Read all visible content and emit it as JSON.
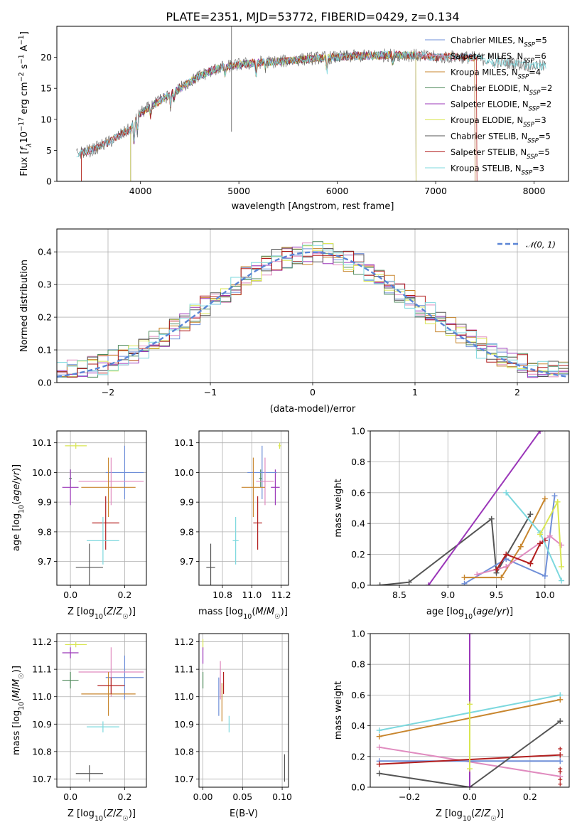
{
  "title": "PLATE=2351, MJD=53772, FIBERID=0429, z=0.134",
  "colors": {
    "Chabrier MILES": "#6f8fd8",
    "Salpeter MILES": "#e08bbf",
    "Kroupa MILES": "#c8862e",
    "Chabrier ELODIE": "#4f8a5c",
    "Salpeter ELODIE": "#9b37b9",
    "Kroupa ELODIE": "#d9e651",
    "Chabrier STELIB": "#555555",
    "Salpeter STELIB": "#b21e1e",
    "Kroupa STELIB": "#7cd8de",
    "normal": "#5a85d6",
    "orange": "#e07a28"
  },
  "chart_data": [
    {
      "id": "spectrum",
      "type": "line",
      "title": "PLATE=2351, MJD=53772, FIBERID=0429, z=0.134",
      "xlabel": "wavelength [Angstrom, rest frame]",
      "ylabel": "Flux [f_λ10^-17 erg cm^-2 s^-1 A^-1]",
      "xlim": [
        3150,
        8350
      ],
      "ylim": [
        0,
        25
      ],
      "xticks": [
        "4000",
        "5000",
        "6000",
        "7000",
        "8000"
      ],
      "yticks": [
        "0",
        "5",
        "10",
        "15",
        "20"
      ],
      "legend": [
        {
          "label": "Chabrier MILES, N",
          "sub": "SSP",
          "suffix": "=5"
        },
        {
          "label": "Salpeter MILES, N",
          "sub": "SSP",
          "suffix": "=6"
        },
        {
          "label": "Kroupa MILES, N",
          "sub": "SSP",
          "suffix": "=4"
        },
        {
          "label": "Chabrier ELODIE, N",
          "sub": "SSP",
          "suffix": "=2"
        },
        {
          "label": "Salpeter ELODIE, N",
          "sub": "SSP",
          "suffix": "=2"
        },
        {
          "label": "Kroupa ELODIE, N",
          "sub": "SSP",
          "suffix": "=3"
        },
        {
          "label": "Chabrier STELIB, N",
          "sub": "SSP",
          "suffix": "=5"
        },
        {
          "label": "Salpeter STELIB, N",
          "sub": "SSP",
          "suffix": "=5"
        },
        {
          "label": "Kroupa STELIB, N",
          "sub": "SSP",
          "suffix": "=3"
        }
      ],
      "continuum": {
        "wavelength": [
          3350,
          3500,
          3700,
          3900,
          4000,
          4200,
          4400,
          4600,
          4800,
          5000,
          5200,
          5400,
          5600,
          5800,
          6000,
          6200,
          6400,
          6600,
          6800,
          7000,
          7200,
          7400,
          7600,
          7800,
          8000,
          8120
        ],
        "flux": [
          4.5,
          5.0,
          6.5,
          8.5,
          11.0,
          13.0,
          15.0,
          17.0,
          18.3,
          18.8,
          19.2,
          19.3,
          19.6,
          19.9,
          20.0,
          20.2,
          20.3,
          20.4,
          20.3,
          20.0,
          20.1,
          19.9,
          19.4,
          19.0,
          18.7,
          18.5
        ]
      }
    },
    {
      "id": "residuals",
      "type": "line",
      "xlabel": "(data-model)/error",
      "ylabel": "Normed distribution",
      "xlim": [
        -2.5,
        2.5
      ],
      "ylim": [
        0,
        0.47
      ],
      "xticks": [
        "−2",
        "−1",
        "0",
        "1",
        "2"
      ],
      "yticks": [
        "0.0",
        "0.1",
        "0.2",
        "0.3",
        "0.4"
      ],
      "legend": [
        "𝒩(0, 1)"
      ],
      "normal_pdf": {
        "mean": 0,
        "sigma": 1
      }
    },
    {
      "id": "age-vs-Z",
      "type": "scatter",
      "xlabel": "Z [log10(Z/Z☉)]",
      "ylabel": "age  [log10(age/yr)]",
      "xlim": [
        -0.05,
        0.28
      ],
      "ylim": [
        9.62,
        10.14
      ],
      "xticks": [
        "0.0",
        "0.2"
      ],
      "yticks": [
        "9.7",
        "9.8",
        "9.9",
        "10.0",
        "10.1"
      ],
      "points": [
        {
          "model": "Kroupa ELODIE",
          "x": 0.02,
          "xerr": 0.04,
          "y": 10.09,
          "yerr": 0.01
        },
        {
          "model": "Chabrier ELODIE",
          "x": 0.0,
          "xerr": 0.005,
          "y": 9.98,
          "yerr": 0.03
        },
        {
          "model": "Salpeter ELODIE",
          "x": 0.0,
          "xerr": 0.03,
          "y": 9.95,
          "yerr": 0.06
        },
        {
          "model": "Chabrier MILES",
          "x": 0.2,
          "xerr": 0.07,
          "y": 10.0,
          "yerr": 0.09
        },
        {
          "model": "Salpeter MILES",
          "x": 0.15,
          "xerr": 0.12,
          "y": 9.97,
          "yerr": 0.08
        },
        {
          "model": "Kroupa MILES",
          "x": 0.14,
          "xerr": 0.1,
          "y": 9.95,
          "yerr": 0.1
        },
        {
          "model": "Salpeter STELIB",
          "x": 0.13,
          "xerr": 0.05,
          "y": 9.83,
          "yerr": 0.09
        },
        {
          "model": "Kroupa STELIB",
          "x": 0.12,
          "xerr": 0.06,
          "y": 9.77,
          "yerr": 0.08
        },
        {
          "model": "Chabrier STELIB",
          "x": 0.07,
          "xerr": 0.05,
          "y": 9.68,
          "yerr": 0.08
        }
      ]
    },
    {
      "id": "age-vs-mass",
      "type": "scatter",
      "xlabel": "mass [log10(M/M☉)]",
      "ylabel": "",
      "xlim": [
        10.64,
        11.25
      ],
      "ylim": [
        9.62,
        10.14
      ],
      "xticks": [
        "10.8",
        "11.0",
        "11.2"
      ],
      "yticks": [
        "9.7",
        "9.8",
        "9.9",
        "10.0",
        "10.1"
      ],
      "points": [
        {
          "model": "Kroupa ELODIE",
          "x": 11.19,
          "xerr": 0.01,
          "y": 10.09,
          "yerr": 0.01
        },
        {
          "model": "Chabrier ELODIE",
          "x": 11.06,
          "xerr": 0.01,
          "y": 9.98,
          "yerr": 0.03
        },
        {
          "model": "Salpeter ELODIE",
          "x": 11.16,
          "xerr": 0.03,
          "y": 9.95,
          "yerr": 0.06
        },
        {
          "model": "Chabrier MILES",
          "x": 11.07,
          "xerr": 0.1,
          "y": 10.0,
          "yerr": 0.09
        },
        {
          "model": "Salpeter MILES",
          "x": 11.09,
          "xerr": 0.06,
          "y": 9.97,
          "yerr": 0.08
        },
        {
          "model": "Kroupa MILES",
          "x": 11.01,
          "xerr": 0.08,
          "y": 9.95,
          "yerr": 0.1
        },
        {
          "model": "Salpeter STELIB",
          "x": 11.04,
          "xerr": 0.03,
          "y": 9.83,
          "yerr": 0.09
        },
        {
          "model": "Kroupa STELIB",
          "x": 10.89,
          "xerr": 0.02,
          "y": 9.77,
          "yerr": 0.08
        },
        {
          "model": "Chabrier STELIB",
          "x": 10.72,
          "xerr": 0.03,
          "y": 9.68,
          "yerr": 0.08
        }
      ]
    },
    {
      "id": "weight-vs-age",
      "type": "line",
      "xlabel": "age  [log10(age/yr)]",
      "ylabel": "mass weight",
      "xlim": [
        8.2,
        10.25
      ],
      "ylim": [
        0,
        1.0
      ],
      "xticks": [
        "8.5",
        "9.0",
        "9.5",
        "10.0"
      ],
      "yticks": [
        "0.0",
        "0.2",
        "0.4",
        "0.6",
        "0.8",
        "1.0"
      ],
      "series": [
        {
          "model": "Chabrier STELIB",
          "x": [
            8.3,
            8.6,
            9.45,
            9.5,
            9.85
          ],
          "y": [
            0.0,
            0.02,
            0.43,
            0.08,
            0.46
          ]
        },
        {
          "model": "Salpeter ELODIE",
          "x": [
            8.8,
            9.95
          ],
          "y": [
            0.0,
            1.0
          ]
        },
        {
          "model": "Chabrier MILES",
          "x": [
            9.17,
            9.6,
            10.0,
            10.1
          ],
          "y": [
            0.01,
            0.17,
            0.06,
            0.58
          ]
        },
        {
          "model": "Kroupa MILES",
          "x": [
            9.17,
            9.55,
            9.75,
            10.0
          ],
          "y": [
            0.05,
            0.05,
            0.25,
            0.56
          ]
        },
        {
          "model": "Salpeter MILES",
          "x": [
            9.3,
            9.6,
            10.05,
            10.17
          ],
          "y": [
            0.07,
            0.12,
            0.32,
            0.26
          ]
        },
        {
          "model": "Salpeter STELIB",
          "x": [
            9.5,
            9.6,
            9.85,
            9.95,
            10.0
          ],
          "y": [
            0.1,
            0.2,
            0.14,
            0.27,
            0.29
          ]
        },
        {
          "model": "Kroupa STELIB",
          "x": [
            9.6,
            9.95,
            10.17
          ],
          "y": [
            0.6,
            0.34,
            0.03
          ]
        },
        {
          "model": "Kroupa ELODIE",
          "x": [
            9.95,
            10.13,
            10.17
          ],
          "y": [
            0.33,
            0.54,
            0.12
          ]
        }
      ]
    },
    {
      "id": "mass-vs-Z",
      "type": "scatter",
      "xlabel": "Z [log10(Z/Z☉)]",
      "ylabel": "mass [log10(M/M☉)]",
      "xlim": [
        -0.05,
        0.28
      ],
      "ylim": [
        10.67,
        11.23
      ],
      "xticks": [
        "0.0",
        "0.2"
      ],
      "yticks": [
        "10.7",
        "10.8",
        "10.9",
        "11.0",
        "11.1",
        "11.2"
      ],
      "points": [
        {
          "model": "Kroupa ELODIE",
          "x": 0.02,
          "xerr": 0.04,
          "y": 11.19,
          "yerr": 0.01
        },
        {
          "model": "Salpeter ELODIE",
          "x": 0.0,
          "xerr": 0.03,
          "y": 11.16,
          "yerr": 0.02
        },
        {
          "model": "Chabrier ELODIE",
          "x": 0.0,
          "xerr": 0.03,
          "y": 11.06,
          "yerr": 0.03
        },
        {
          "model": "Chabrier MILES",
          "x": 0.2,
          "xerr": 0.07,
          "y": 11.07,
          "yerr": 0.08
        },
        {
          "model": "Salpeter MILES",
          "x": 0.15,
          "xerr": 0.12,
          "y": 11.09,
          "yerr": 0.09
        },
        {
          "model": "Kroupa MILES",
          "x": 0.14,
          "xerr": 0.1,
          "y": 11.01,
          "yerr": 0.08
        },
        {
          "model": "Salpeter STELIB",
          "x": 0.15,
          "xerr": 0.05,
          "y": 11.04,
          "yerr": 0.03
        },
        {
          "model": "Kroupa STELIB",
          "x": 0.12,
          "xerr": 0.06,
          "y": 10.89,
          "yerr": 0.02
        },
        {
          "model": "Chabrier STELIB",
          "x": 0.07,
          "xerr": 0.05,
          "y": 10.72,
          "yerr": 0.03
        }
      ]
    },
    {
      "id": "mass-vs-EBV",
      "type": "scatter",
      "xlabel": "E(B-V)",
      "ylabel": "",
      "xlim": [
        -0.005,
        0.108
      ],
      "ylim": [
        10.67,
        11.23
      ],
      "xticks": [
        "0.00",
        "0.05",
        "0.10"
      ],
      "yticks": [
        "10.7",
        "10.8",
        "10.9",
        "11.0",
        "11.1",
        "11.2"
      ],
      "points": [
        {
          "model": "Kroupa ELODIE",
          "x": 0.0,
          "y": 11.19,
          "yerr": 0.02
        },
        {
          "model": "Salpeter ELODIE",
          "x": 0.0,
          "y": 11.15,
          "yerr": 0.03
        },
        {
          "model": "Chabrier ELODIE",
          "x": 0.0,
          "y": 11.06,
          "yerr": 0.03
        },
        {
          "model": "Chabrier MILES",
          "x": 0.02,
          "y": 11.0,
          "yerr": 0.07
        },
        {
          "model": "Salpeter MILES",
          "x": 0.022,
          "y": 11.06,
          "yerr": 0.07
        },
        {
          "model": "Kroupa MILES",
          "x": 0.024,
          "y": 10.98,
          "yerr": 0.07
        },
        {
          "model": "Salpeter STELIB",
          "x": 0.026,
          "y": 11.05,
          "yerr": 0.04
        },
        {
          "model": "Kroupa STELIB",
          "x": 0.033,
          "y": 10.9,
          "yerr": 0.03
        },
        {
          "model": "Chabrier STELIB",
          "x": 0.103,
          "y": 10.74,
          "yerr": 0.05
        }
      ]
    },
    {
      "id": "weight-vs-Z",
      "type": "line",
      "xlabel": "Z [log10(Z/Z☉)]",
      "ylabel": "mass weight",
      "xlim": [
        -0.33,
        0.33
      ],
      "ylim": [
        0,
        1.0
      ],
      "xticks": [
        "−0.2",
        "0.0",
        "0.2"
      ],
      "yticks": [
        "0.0",
        "0.2",
        "0.4",
        "0.6",
        "0.8",
        "1.0"
      ],
      "series": [
        {
          "model": "Kroupa STELIB",
          "x": [
            -0.3,
            0.3
          ],
          "y": [
            0.37,
            0.6
          ]
        },
        {
          "model": "Kroupa MILES",
          "x": [
            -0.3,
            0.3
          ],
          "y": [
            0.33,
            0.57
          ]
        },
        {
          "model": "Salpeter MILES",
          "x": [
            -0.3,
            0.3
          ],
          "y": [
            0.26,
            0.07
          ]
        },
        {
          "model": "Chabrier MILES",
          "x": [
            -0.3,
            0.3
          ],
          "y": [
            0.17,
            0.17
          ]
        },
        {
          "model": "Salpeter STELIB",
          "x": [
            -0.3,
            0.3
          ],
          "y": [
            0.15,
            0.21
          ]
        },
        {
          "model": "Chabrier STELIB",
          "x": [
            -0.3,
            0.0,
            0.3
          ],
          "y": [
            0.09,
            0.0,
            0.43
          ]
        },
        {
          "model": "Salpeter ELODIE",
          "x": [
            0.0,
            0.0
          ],
          "y": [
            0.0,
            1.0
          ]
        },
        {
          "model": "Kroupa ELODIE",
          "x": [
            0.0,
            0.0
          ],
          "y": [
            0.12,
            0.54
          ]
        }
      ]
    }
  ]
}
